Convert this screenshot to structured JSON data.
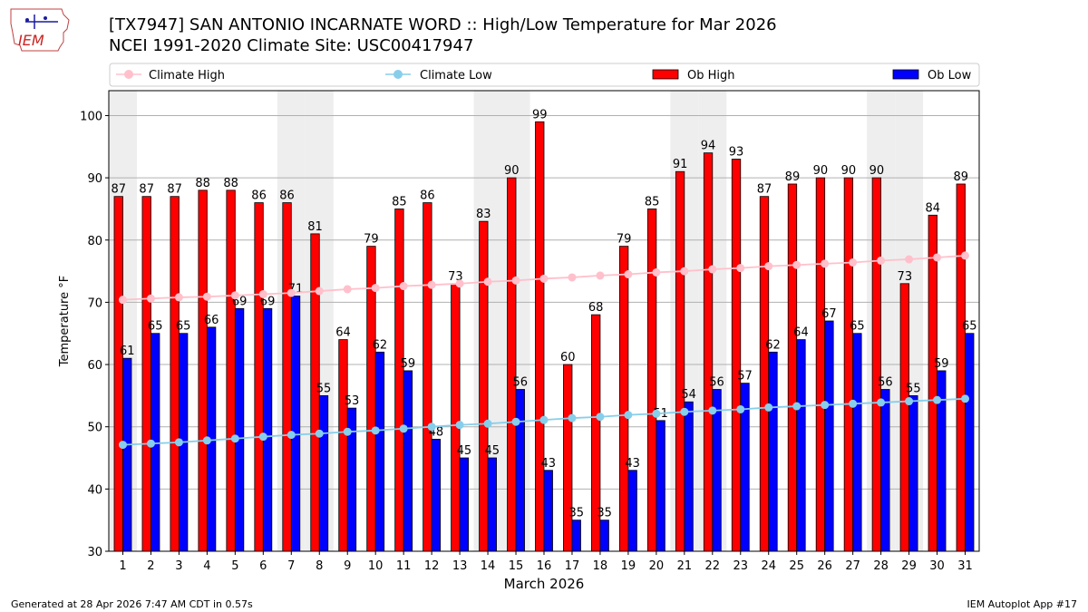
{
  "header": {
    "logo_text": "IEM",
    "title_line1": "[TX7947] SAN ANTONIO INCARNATE WORD :: High/Low Temperature for Mar 2026",
    "title_line2": "NCEI 1991-2020 Climate Site: USC00417947"
  },
  "footer": {
    "generated": "Generated at 28 Apr 2026 7:47 AM CDT in 0.57s",
    "app": "IEM Autoplot App #17"
  },
  "colors": {
    "ob_high": "#ff0000",
    "ob_low": "#0000ff",
    "climate_high": "#ffc0cb",
    "climate_low": "#87ceeb",
    "weekend_shade": "#eeeeee",
    "grid": "#b0b0b0"
  },
  "chart_data": {
    "type": "bar",
    "title": "[TX7947] SAN ANTONIO INCARNATE WORD :: High/Low Temperature for Mar 2026",
    "xlabel": "March 2026",
    "ylabel": "Temperature °F",
    "ylim": [
      30,
      104
    ],
    "yticks": [
      30,
      40,
      50,
      60,
      70,
      80,
      90,
      100
    ],
    "grid": true,
    "legend_position": "top",
    "categories": [
      "1",
      "2",
      "3",
      "4",
      "5",
      "6",
      "7",
      "8",
      "9",
      "10",
      "11",
      "12",
      "13",
      "14",
      "15",
      "16",
      "17",
      "18",
      "19",
      "20",
      "21",
      "22",
      "23",
      "24",
      "25",
      "26",
      "27",
      "28",
      "29",
      "30",
      "31"
    ],
    "shaded_days": [
      1,
      7,
      8,
      14,
      15,
      21,
      22,
      28,
      29
    ],
    "series": [
      {
        "name": "Ob High",
        "kind": "bar",
        "color": "#ff0000",
        "values": [
          87,
          87,
          87,
          88,
          88,
          86,
          86,
          81,
          64,
          79,
          85,
          86,
          73,
          83,
          90,
          99,
          60,
          68,
          79,
          85,
          91,
          94,
          93,
          87,
          89,
          90,
          90,
          90,
          73,
          84,
          89
        ]
      },
      {
        "name": "Ob Low",
        "kind": "bar",
        "color": "#0000ff",
        "values": [
          61,
          65,
          65,
          66,
          69,
          69,
          71,
          55,
          53,
          62,
          59,
          48,
          45,
          45,
          56,
          43,
          35,
          35,
          43,
          51,
          54,
          56,
          57,
          62,
          64,
          67,
          65,
          56,
          55,
          59,
          65
        ]
      },
      {
        "name": "Climate High",
        "kind": "line",
        "color": "#ffc0cb",
        "values": [
          70.4,
          70.6,
          70.8,
          70.9,
          71.1,
          71.3,
          71.5,
          71.8,
          72.1,
          72.3,
          72.6,
          72.8,
          73.0,
          73.3,
          73.5,
          73.8,
          74.0,
          74.3,
          74.5,
          74.8,
          75.0,
          75.3,
          75.5,
          75.8,
          76.0,
          76.2,
          76.4,
          76.7,
          76.9,
          77.2,
          77.5
        ]
      },
      {
        "name": "Climate Low",
        "kind": "line",
        "color": "#87ceeb",
        "values": [
          47.1,
          47.3,
          47.5,
          47.8,
          48.1,
          48.4,
          48.7,
          48.9,
          49.2,
          49.4,
          49.7,
          50.0,
          50.3,
          50.5,
          50.8,
          51.1,
          51.4,
          51.6,
          51.9,
          52.1,
          52.4,
          52.6,
          52.8,
          53.1,
          53.3,
          53.5,
          53.7,
          53.9,
          54.1,
          54.3,
          54.5
        ]
      }
    ],
    "legend": [
      "Climate High",
      "Climate Low",
      "Ob High",
      "Ob Low"
    ]
  }
}
